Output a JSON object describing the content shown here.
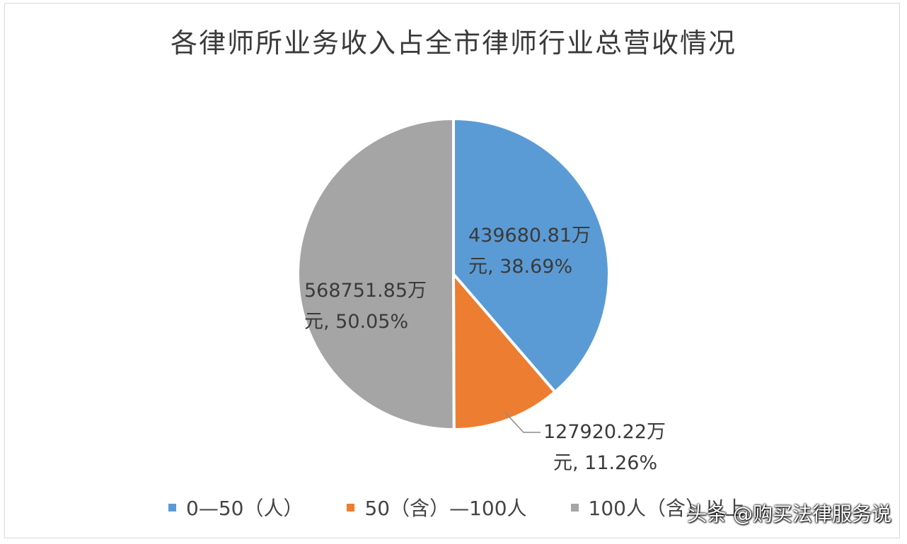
{
  "chart_data": {
    "type": "pie",
    "title": "各律师所业务收入占全市律师行业总营收情况",
    "slices": [
      {
        "name": "0—50（人）",
        "value": 439680.81,
        "percent": 38.69,
        "color": "#5b9bd5",
        "label_line1": "439680.81万",
        "label_line2": "元, 38.69%"
      },
      {
        "name": "50（含）—100人",
        "value": 127920.22,
        "percent": 11.26,
        "color": "#ed7d31",
        "label_line1": "127920.22万",
        "label_line2": "元, 11.26%"
      },
      {
        "name": "100人（含）以上",
        "value": 568751.85,
        "percent": 50.05,
        "color": "#a5a5a5",
        "label_line1": "568751.85万",
        "label_line2": "元, 50.05%"
      }
    ],
    "legend_position": "bottom"
  },
  "watermark": "头条 @购买法律服务说"
}
